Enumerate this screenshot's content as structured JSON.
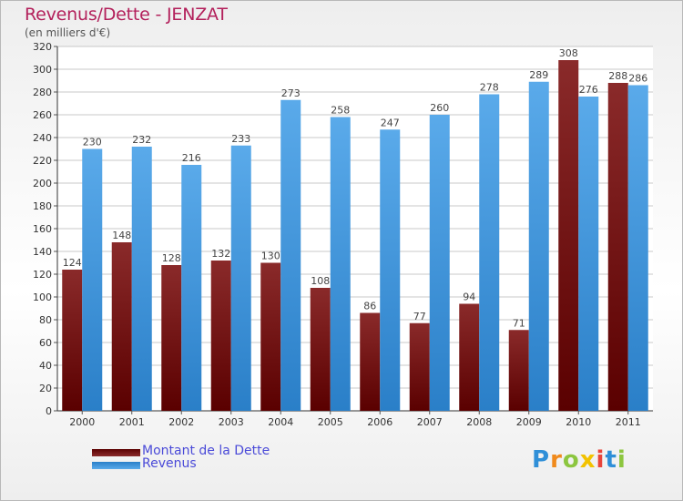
{
  "header": {
    "title": "Revenus/Dette - JENZAT",
    "subtitle": "(en milliers d'€)"
  },
  "legend": {
    "items": [
      {
        "label": "Montant de la Dette",
        "color": "#7a1a1a"
      },
      {
        "label": "Revenus",
        "color": "#3a93db"
      }
    ]
  },
  "brand": {
    "letters": [
      {
        "ch": "P",
        "color": "#2f8fd8"
      },
      {
        "ch": "r",
        "color": "#f08a1c"
      },
      {
        "ch": "o",
        "color": "#8cc63f"
      },
      {
        "ch": "x",
        "color": "#f2c200"
      },
      {
        "ch": "i",
        "color": "#e8443a"
      },
      {
        "ch": "t",
        "color": "#2f8fd8"
      },
      {
        "ch": "i",
        "color": "#8cc63f"
      }
    ]
  },
  "chart_data": {
    "type": "bar",
    "title": "Revenus/Dette - JENZAT",
    "subtitle": "(en milliers d'€)",
    "categories": [
      "2000",
      "2001",
      "2002",
      "2003",
      "2004",
      "2005",
      "2006",
      "2007",
      "2008",
      "2009",
      "2010",
      "2011"
    ],
    "series": [
      {
        "name": "Montant de la Dette",
        "color": "#7a1a1a",
        "values": [
          124,
          148,
          128,
          132,
          130,
          108,
          86,
          77,
          94,
          71,
          308,
          288
        ]
      },
      {
        "name": "Revenus",
        "color": "#3a93db",
        "values": [
          230,
          232,
          216,
          233,
          273,
          258,
          247,
          260,
          278,
          289,
          276,
          286
        ]
      }
    ],
    "ylim": [
      0,
      320
    ],
    "yticks": [
      0,
      20,
      40,
      60,
      80,
      100,
      120,
      140,
      160,
      180,
      200,
      220,
      240,
      260,
      280,
      300,
      320
    ],
    "grid": true,
    "legend_position": "bottom-left"
  }
}
